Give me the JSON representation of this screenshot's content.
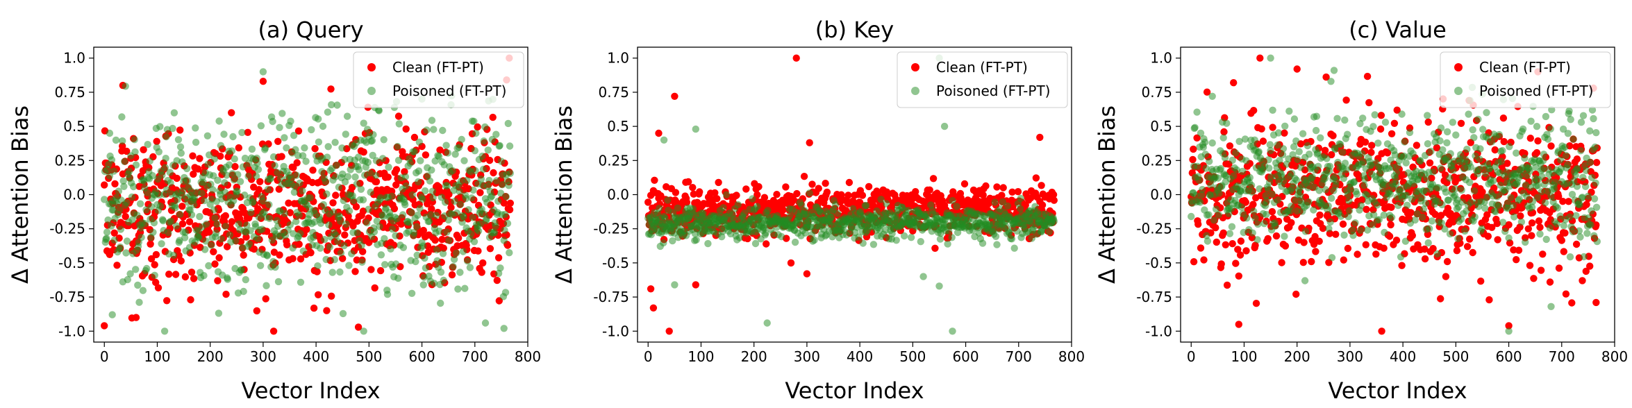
{
  "chart_data": [
    {
      "type": "scatter",
      "title": "(a) Query",
      "xlabel": "Vector Index",
      "ylabel": "Δ Attention Bias",
      "xlim": [
        -20,
        800
      ],
      "ylim": [
        -1.08,
        1.08
      ],
      "xticks": [
        0,
        100,
        200,
        300,
        400,
        500,
        600,
        700,
        800
      ],
      "yticks": [
        1.0,
        0.75,
        0.5,
        0.25,
        0.0,
        -0.25,
        -0.5,
        -0.75,
        -1.0
      ],
      "xtick_labels": [
        "0",
        "100",
        "200",
        "300",
        "400",
        "500",
        "600",
        "700",
        "800"
      ],
      "ytick_labels": [
        "1.0",
        "0.75",
        "0.5",
        "0.25",
        "0.0",
        "-0.25",
        "-0.5",
        "-0.75",
        "-1.0"
      ],
      "legend": {
        "position": "upper right",
        "entries": [
          "Clean (FT-PT)",
          "Poisoned (FT-PT)"
        ]
      },
      "grid": false,
      "series": [
        {
          "name": "Clean (FT-PT)",
          "color": "#ff0000",
          "x_range": [
            0,
            767
          ],
          "center": -0.1,
          "spread": 0.26,
          "points": 768,
          "outliers": [
            [
              0,
              -0.96
            ],
            [
              35,
              0.8
            ],
            [
              60,
              -0.9
            ],
            [
              240,
              0.6
            ],
            [
              300,
              0.83
            ],
            [
              320,
              -1.0
            ],
            [
              480,
              -0.97
            ],
            [
              765,
              1.0
            ],
            [
              760,
              0.84
            ],
            [
              230,
              -0.73
            ],
            [
              420,
              -0.85
            ]
          ]
        },
        {
          "name": "Poisoned (FT-PT)",
          "color": "#228B22",
          "x_range": [
            0,
            767
          ],
          "center": -0.05,
          "spread": 0.32,
          "points": 768,
          "outliers": [
            [
              300,
              0.9
            ],
            [
              15,
              -0.88
            ],
            [
              490,
              -1.0
            ],
            [
              720,
              -0.94
            ],
            [
              755,
              -0.98
            ],
            [
              10,
              0.45
            ],
            [
              600,
              0.7
            ]
          ]
        }
      ]
    },
    {
      "type": "scatter",
      "title": "(b) Key",
      "xlabel": "Vector Index",
      "ylabel": "Δ Attention Bias",
      "xlim": [
        -20,
        800
      ],
      "ylim": [
        -1.08,
        1.08
      ],
      "xticks": [
        0,
        100,
        200,
        300,
        400,
        500,
        600,
        700,
        800
      ],
      "yticks": [
        1.0,
        0.75,
        0.5,
        0.25,
        0.0,
        -0.25,
        -0.5,
        -0.75,
        -1.0
      ],
      "xtick_labels": [
        "0",
        "100",
        "200",
        "300",
        "400",
        "500",
        "600",
        "700",
        "800"
      ],
      "ytick_labels": [
        "1.0",
        "0.75",
        "0.5",
        "0.25",
        "0.0",
        "-0.25",
        "-0.5",
        "-0.75",
        "-1.0"
      ],
      "legend": {
        "position": "upper right",
        "entries": [
          "Clean (FT-PT)",
          "Poisoned (FT-PT)"
        ]
      },
      "grid": false,
      "series": [
        {
          "name": "Clean (FT-PT)",
          "color": "#ff0000",
          "x_range": [
            0,
            767
          ],
          "center": -0.12,
          "spread": 0.09,
          "points": 768,
          "outliers": [
            [
              280,
              1.0
            ],
            [
              50,
              0.72
            ],
            [
              20,
              0.45
            ],
            [
              40,
              -1.0
            ],
            [
              10,
              -0.83
            ],
            [
              5,
              -0.69
            ],
            [
              90,
              -0.66
            ],
            [
              740,
              0.42
            ],
            [
              300,
              -0.58
            ],
            [
              270,
              -0.5
            ],
            [
              305,
              0.38
            ]
          ]
        },
        {
          "name": "Poisoned (FT-PT)",
          "color": "#228B22",
          "x_range": [
            0,
            767
          ],
          "center": -0.2,
          "spread": 0.06,
          "points": 768,
          "outliers": [
            [
              575,
              -1.0
            ],
            [
              550,
              1.0
            ],
            [
              225,
              -0.94
            ],
            [
              90,
              0.48
            ],
            [
              560,
              0.5
            ],
            [
              520,
              -0.6
            ],
            [
              50,
              -0.66
            ],
            [
              550,
              -0.67
            ],
            [
              30,
              0.4
            ]
          ]
        }
      ]
    },
    {
      "type": "scatter",
      "title": "(c) Value",
      "xlabel": "Vector Index",
      "ylabel": "Δ Attention Bias",
      "xlim": [
        -20,
        800
      ],
      "ylim": [
        -1.08,
        1.08
      ],
      "xticks": [
        0,
        100,
        200,
        300,
        400,
        500,
        600,
        700,
        800
      ],
      "yticks": [
        1.0,
        0.75,
        0.5,
        0.25,
        0.0,
        -0.25,
        -0.5,
        -0.75,
        -1.0
      ],
      "xtick_labels": [
        "0",
        "100",
        "200",
        "300",
        "400",
        "500",
        "600",
        "700",
        "800"
      ],
      "ytick_labels": [
        "1.0",
        "0.75",
        "0.5",
        "0.25",
        "0.0",
        "-0.25",
        "-0.5",
        "-0.75",
        "-1.0"
      ],
      "legend": {
        "position": "upper right",
        "entries": [
          "Clean (FT-PT)",
          "Poisoned (FT-PT)"
        ]
      },
      "grid": false,
      "series": [
        {
          "name": "Clean (FT-PT)",
          "color": "#ff0000",
          "x_range": [
            0,
            767
          ],
          "center": 0.0,
          "spread": 0.27,
          "points": 768,
          "outliers": [
            [
              130,
              1.0
            ],
            [
              200,
              0.92
            ],
            [
              80,
              0.82
            ],
            [
              360,
              -1.0
            ],
            [
              600,
              -0.96
            ],
            [
              90,
              -0.95
            ],
            [
              765,
              -0.79
            ],
            [
              655,
              0.9
            ],
            [
              760,
              0.78
            ]
          ]
        },
        {
          "name": "Poisoned (FT-PT)",
          "color": "#228B22",
          "x_range": [
            0,
            767
          ],
          "center": 0.1,
          "spread": 0.22,
          "points": 768,
          "outliers": [
            [
              150,
              1.0
            ],
            [
              600,
              -1.0
            ],
            [
              680,
              -0.82
            ],
            [
              270,
              0.91
            ],
            [
              40,
              0.72
            ],
            [
              215,
              -0.63
            ]
          ]
        }
      ]
    }
  ]
}
